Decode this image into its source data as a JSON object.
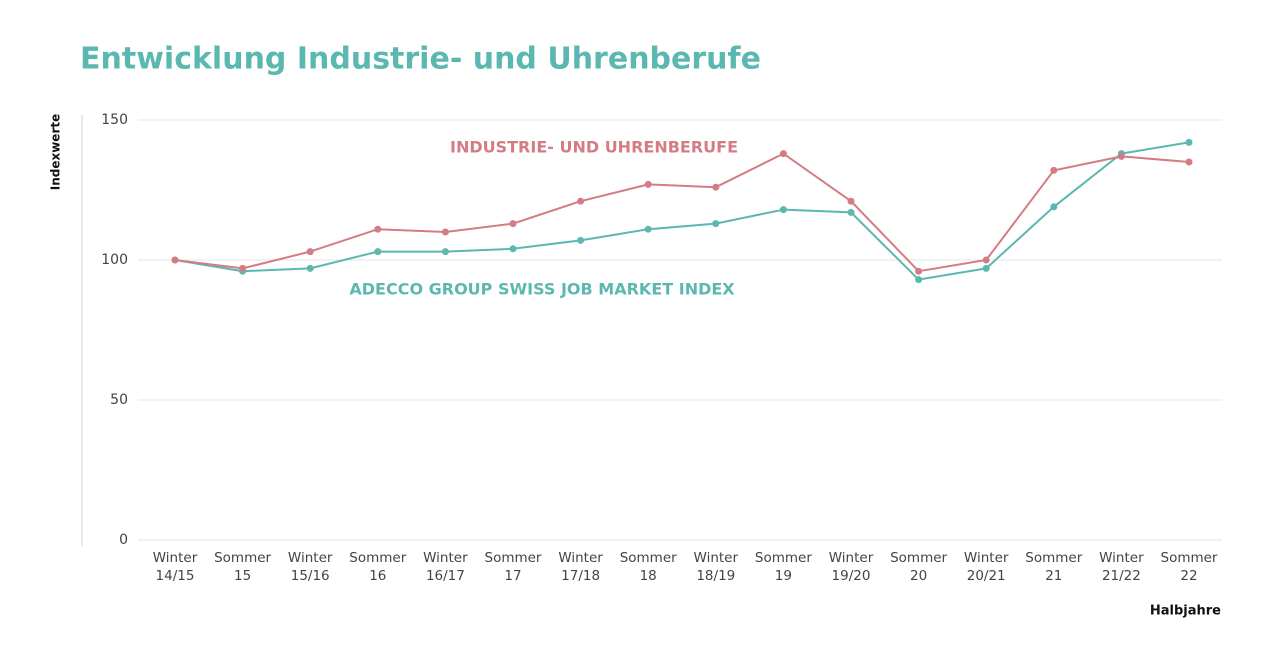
{
  "chart_data": {
    "type": "line",
    "title": "Entwicklung Industrie- und Uhrenberufe",
    "y_label": "Indexwerte",
    "x_label": "Halbjahre",
    "categories": [
      "Winter 14/15",
      "Sommer 15",
      "Winter 15/16",
      "Sommer 16",
      "Winter 16/17",
      "Sommer 17",
      "Winter 17/18",
      "Sommer 18",
      "Winter 18/19",
      "Sommer 19",
      "Winter 19/20",
      "Sommer 20",
      "Winter 20/21",
      "Sommer 21",
      "Winter 21/22",
      "Sommer 22"
    ],
    "series": [
      {
        "name": "INDUSTRIE- UND UHRENBERUFE",
        "color": "#d47c83",
        "values": [
          100,
          97,
          103,
          111,
          110,
          113,
          121,
          127,
          126,
          138,
          121,
          96,
          100,
          132,
          137,
          135
        ]
      },
      {
        "name": "ADECCO GROUP SWISS JOB MARKET INDEX",
        "color": "#5bb8b1",
        "values": [
          100,
          96,
          97,
          103,
          103,
          104,
          107,
          111,
          113,
          118,
          117,
          93,
          97,
          119,
          138,
          142
        ]
      }
    ],
    "ylim": [
      0,
      150
    ],
    "yticks": [
      0,
      50,
      100,
      150
    ],
    "grid": true
  }
}
